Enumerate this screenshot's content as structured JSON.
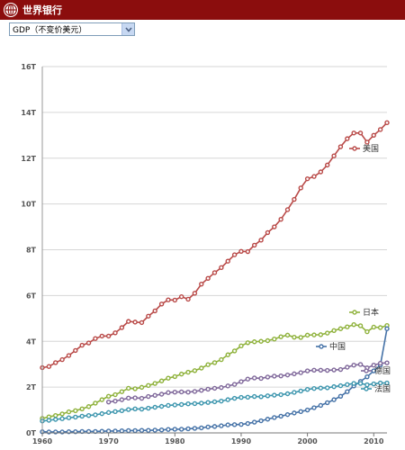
{
  "header": {
    "brand": "世界银行"
  },
  "indicator_select": {
    "value": "GDP（不变价美元）"
  },
  "chart_data": {
    "type": "line",
    "title": "",
    "xlabel": "",
    "ylabel": "",
    "xlim": [
      1960,
      2012
    ],
    "ylim": [
      0,
      16
    ],
    "x_ticks": [
      1960,
      1970,
      1980,
      1990,
      2000,
      2010
    ],
    "x_tick_labels": [
      "1960",
      "1970",
      "1980",
      "1990",
      "2000",
      "2010"
    ],
    "y_ticks": [
      0,
      2,
      4,
      6,
      8,
      10,
      12,
      14,
      16
    ],
    "y_tick_labels": [
      "0T",
      "2T",
      "4T",
      "6T",
      "8T",
      "10T",
      "12T",
      "14T",
      "16T"
    ],
    "grid": true,
    "legend": "inline-right",
    "series": [
      {
        "name": "美国",
        "color": "#b94a48",
        "start": 1960,
        "values": [
          2.85,
          2.9,
          3.07,
          3.2,
          3.38,
          3.6,
          3.83,
          3.93,
          4.12,
          4.23,
          4.23,
          4.37,
          4.6,
          4.87,
          4.84,
          4.82,
          5.1,
          5.33,
          5.63,
          5.81,
          5.8,
          5.95,
          5.84,
          6.1,
          6.5,
          6.75,
          7.0,
          7.22,
          7.5,
          7.78,
          7.93,
          7.92,
          8.2,
          8.42,
          8.75,
          9.0,
          9.33,
          9.75,
          10.2,
          10.7,
          11.1,
          11.2,
          11.4,
          11.7,
          12.1,
          12.5,
          12.85,
          13.1,
          13.1,
          12.7,
          13.0,
          13.25,
          13.55
        ]
      },
      {
        "name": "日本",
        "color": "#8fb23c",
        "start": 1960,
        "values": [
          0.63,
          0.7,
          0.76,
          0.83,
          0.92,
          0.97,
          1.05,
          1.15,
          1.3,
          1.45,
          1.6,
          1.67,
          1.8,
          1.95,
          1.93,
          1.99,
          2.07,
          2.16,
          2.27,
          2.39,
          2.46,
          2.57,
          2.65,
          2.72,
          2.83,
          2.98,
          3.07,
          3.2,
          3.41,
          3.58,
          3.8,
          3.94,
          3.98,
          4.0,
          4.03,
          4.1,
          4.2,
          4.27,
          4.18,
          4.17,
          4.27,
          4.28,
          4.29,
          4.36,
          4.47,
          4.55,
          4.63,
          4.73,
          4.68,
          4.42,
          4.62,
          4.6,
          4.69
        ]
      },
      {
        "name": "中国",
        "color": "#4572a7",
        "start": 1960,
        "values": [
          0.05,
          0.04,
          0.04,
          0.04,
          0.05,
          0.05,
          0.06,
          0.06,
          0.06,
          0.07,
          0.08,
          0.08,
          0.09,
          0.1,
          0.1,
          0.11,
          0.11,
          0.12,
          0.13,
          0.15,
          0.16,
          0.16,
          0.18,
          0.2,
          0.22,
          0.26,
          0.28,
          0.31,
          0.35,
          0.36,
          0.37,
          0.41,
          0.47,
          0.53,
          0.6,
          0.67,
          0.73,
          0.8,
          0.87,
          0.93,
          1.0,
          1.1,
          1.2,
          1.32,
          1.45,
          1.6,
          1.8,
          2.05,
          2.25,
          2.45,
          2.71,
          2.96,
          4.55
        ]
      },
      {
        "name": "德国",
        "color": "#80699b",
        "start": 1970,
        "values": [
          1.35,
          1.39,
          1.45,
          1.52,
          1.53,
          1.51,
          1.59,
          1.64,
          1.69,
          1.76,
          1.78,
          1.79,
          1.78,
          1.81,
          1.86,
          1.91,
          1.95,
          1.98,
          2.05,
          2.12,
          2.24,
          2.35,
          2.4,
          2.38,
          2.44,
          2.48,
          2.49,
          2.53,
          2.58,
          2.63,
          2.71,
          2.74,
          2.74,
          2.73,
          2.75,
          2.77,
          2.87,
          2.96,
          2.99,
          2.84,
          2.96,
          3.04,
          3.06
        ]
      },
      {
        "name": "法国",
        "color": "#3d96ae",
        "start": 1960,
        "values": [
          0.52,
          0.55,
          0.59,
          0.62,
          0.66,
          0.69,
          0.73,
          0.76,
          0.79,
          0.84,
          0.89,
          0.93,
          0.97,
          1.02,
          1.05,
          1.04,
          1.08,
          1.12,
          1.16,
          1.2,
          1.22,
          1.24,
          1.27,
          1.28,
          1.3,
          1.33,
          1.36,
          1.39,
          1.45,
          1.51,
          1.55,
          1.56,
          1.59,
          1.58,
          1.62,
          1.65,
          1.67,
          1.71,
          1.77,
          1.83,
          1.9,
          1.94,
          1.96,
          1.97,
          2.02,
          2.06,
          2.11,
          2.16,
          2.16,
          2.1,
          2.14,
          2.18,
          2.18
        ]
      }
    ]
  }
}
